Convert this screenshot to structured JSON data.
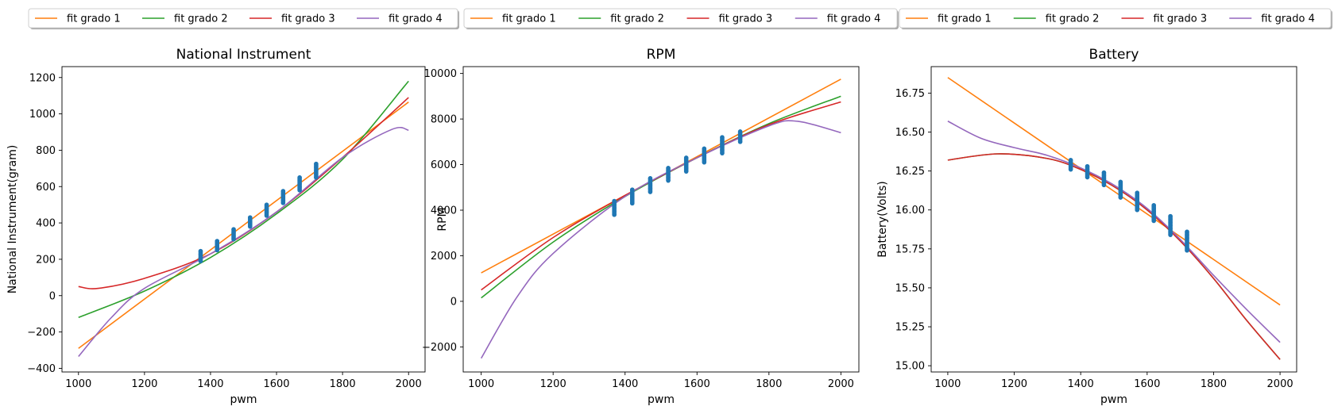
{
  "legend_labels": [
    "fit grado 1",
    "fit grado 2",
    "fit grado 3",
    "fit grado 4"
  ],
  "colors": {
    "grado1": "#ff7f0e",
    "grado2": "#2ca02c",
    "grado3": "#d62728",
    "grado4": "#9467bd",
    "points": "#1f77b4"
  },
  "chart_data": [
    {
      "type": "line",
      "title": "National Instrument",
      "xlabel": "pwm",
      "ylabel": "National Instrument(gram)",
      "xlim": [
        950,
        2050
      ],
      "ylim": [
        -420,
        1260
      ],
      "xticks": [
        1000,
        1200,
        1400,
        1600,
        1800,
        2000
      ],
      "yticks": [
        -400,
        -200,
        0,
        200,
        400,
        600,
        800,
        1000,
        1200
      ],
      "series": [
        {
          "name": "fit grado 1",
          "x": [
            1000,
            2000
          ],
          "y": [
            -290,
            1065
          ]
        },
        {
          "name": "fit grado 2",
          "x": [
            1000,
            1200,
            1400,
            1600,
            1800,
            2000
          ],
          "y": [
            -120,
            25,
            210,
            450,
            750,
            1180
          ]
        },
        {
          "name": "fit grado 3",
          "x": [
            1000,
            1060,
            1200,
            1400,
            1600,
            1800,
            2000
          ],
          "y": [
            50,
            40,
            95,
            230,
            460,
            760,
            1090
          ]
        },
        {
          "name": "fit grado 4",
          "x": [
            1000,
            1100,
            1200,
            1400,
            1600,
            1800,
            1950,
            2000
          ],
          "y": [
            -335,
            -120,
            40,
            230,
            460,
            760,
            915,
            910
          ]
        }
      ],
      "scatter": {
        "name": "data",
        "x": [
          1370,
          1420,
          1470,
          1520,
          1570,
          1620,
          1670,
          1720
        ],
        "ymin": [
          190,
          250,
          310,
          380,
          440,
          510,
          580,
          650
        ],
        "ymax": [
          245,
          300,
          365,
          430,
          500,
          575,
          650,
          725
        ]
      }
    },
    {
      "type": "line",
      "title": "RPM",
      "xlabel": "pwm",
      "ylabel": "RPM",
      "xlim": [
        950,
        2050
      ],
      "ylim": [
        -3100,
        10300
      ],
      "xticks": [
        1000,
        1200,
        1400,
        1600,
        1800,
        2000
      ],
      "yticks": [
        -2000,
        0,
        2000,
        4000,
        6000,
        8000,
        10000
      ],
      "series": [
        {
          "name": "fit grado 1",
          "x": [
            1000,
            2000
          ],
          "y": [
            1250,
            9750
          ]
        },
        {
          "name": "fit grado 2",
          "x": [
            1000,
            1200,
            1400,
            1600,
            1800,
            2000
          ],
          "y": [
            150,
            2600,
            4600,
            6300,
            7800,
            9000
          ]
        },
        {
          "name": "fit grado 3",
          "x": [
            1000,
            1200,
            1400,
            1600,
            1800,
            2000
          ],
          "y": [
            500,
            2800,
            4650,
            6300,
            7750,
            8750
          ]
        },
        {
          "name": "fit grado 4",
          "x": [
            1000,
            1100,
            1200,
            1400,
            1600,
            1800,
            1880,
            2000
          ],
          "y": [
            -2500,
            200,
            2100,
            4600,
            6300,
            7700,
            7900,
            7400
          ]
        }
      ],
      "scatter": {
        "name": "data",
        "x": [
          1370,
          1420,
          1470,
          1520,
          1570,
          1620,
          1670,
          1720
        ],
        "ymin": [
          3800,
          4300,
          4800,
          5300,
          5700,
          6100,
          6500,
          7000
        ],
        "ymax": [
          4400,
          4900,
          5400,
          5850,
          6300,
          6700,
          7200,
          7450
        ]
      }
    },
    {
      "type": "line",
      "title": "Battery",
      "xlabel": "pwm",
      "ylabel": "Battery(Volts)",
      "xlim": [
        950,
        2050
      ],
      "ylim": [
        14.96,
        16.92
      ],
      "xticks": [
        1000,
        1200,
        1400,
        1600,
        1800,
        2000
      ],
      "yticks": [
        15.0,
        15.25,
        15.5,
        15.75,
        16.0,
        16.25,
        16.5,
        16.75
      ],
      "ytick_labels": [
        "15.00",
        "15.25",
        "15.50",
        "15.75",
        "16.00",
        "16.25",
        "16.50",
        "16.75"
      ],
      "series": [
        {
          "name": "fit grado 1",
          "x": [
            1000,
            2000
          ],
          "y": [
            16.85,
            15.39
          ]
        },
        {
          "name": "fit grado 2",
          "x": [
            1000,
            1150,
            1300,
            1400,
            1500,
            1600,
            1700,
            1800,
            1900,
            2000
          ],
          "y": [
            16.32,
            16.36,
            16.33,
            16.26,
            16.15,
            16.0,
            15.8,
            15.56,
            15.29,
            15.04
          ]
        },
        {
          "name": "fit grado 3",
          "x": [
            1000,
            1150,
            1300,
            1400,
            1500,
            1600,
            1700,
            1800,
            1900,
            2000
          ],
          "y": [
            16.32,
            16.36,
            16.33,
            16.26,
            16.15,
            16.0,
            15.8,
            15.56,
            15.29,
            15.04
          ]
        },
        {
          "name": "fit grado 4",
          "x": [
            1000,
            1100,
            1200,
            1300,
            1400,
            1500,
            1600,
            1700,
            1800,
            1900,
            2000
          ],
          "y": [
            16.57,
            16.46,
            16.4,
            16.35,
            16.27,
            16.16,
            16.01,
            15.81,
            15.58,
            15.36,
            15.15
          ]
        }
      ],
      "scatter": {
        "name": "data",
        "x": [
          1370,
          1420,
          1470,
          1520,
          1570,
          1620,
          1670,
          1720
        ],
        "ymin": [
          16.26,
          16.21,
          16.16,
          16.08,
          16.0,
          15.93,
          15.84,
          15.74
        ],
        "ymax": [
          16.32,
          16.28,
          16.24,
          16.18,
          16.11,
          16.03,
          15.96,
          15.86
        ]
      }
    }
  ]
}
